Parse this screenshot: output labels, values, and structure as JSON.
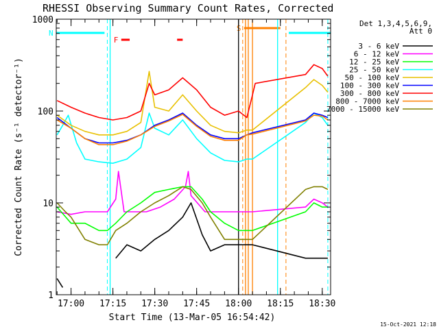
{
  "chart_data": {
    "type": "line",
    "title": "RHESSI Observing Summary Count Rates, Corrected",
    "xlabel": "Start Time (13-Mar-05 16:54:42)",
    "ylabel": "Corrected Count Rate (s⁻¹ detector⁻¹)",
    "y_scale": "log",
    "ylim": [
      1,
      1000
    ],
    "xlim": [
      "16:54:42",
      "18:33:00"
    ],
    "x_ticks": [
      "17:00",
      "17:15",
      "17:30",
      "17:45",
      "18:00",
      "18:15",
      "18:30"
    ],
    "y_ticks": [
      "1",
      "10",
      "100",
      "1000"
    ],
    "legend_header": [
      "Det 1,3,4,5,6,9,",
      "Att 0"
    ],
    "legend_position": "right",
    "series": [
      {
        "name": "3 - 6 keV",
        "color": "#000000",
        "x": [
          "16:55",
          "16:57",
          "17:00",
          "17:05",
          "17:10",
          "17:13",
          "17:16",
          "17:20",
          "17:25",
          "17:30",
          "17:35",
          "17:40",
          "17:43",
          "17:47",
          "17:50",
          "17:55",
          "18:00",
          "18:02",
          "18:05",
          "18:24",
          "18:27",
          "18:30",
          "18:32"
        ],
        "y": [
          1.5,
          1.2,
          null,
          null,
          null,
          null,
          2.5,
          3.5,
          3.0,
          4.0,
          5.0,
          7.0,
          10,
          4.5,
          3.0,
          3.5,
          3.5,
          3.5,
          3.5,
          2.5,
          2.5,
          2.5,
          2.5
        ]
      },
      {
        "name": "6 - 12 keV",
        "color": "#ff00ff",
        "x": [
          "16:55",
          "17:00",
          "17:05",
          "17:10",
          "17:13",
          "17:16",
          "17:17",
          "17:19",
          "17:22",
          "17:27",
          "17:32",
          "17:37",
          "17:41",
          "17:42",
          "17:43",
          "17:48",
          "17:55",
          "18:00",
          "18:05",
          "18:24",
          "18:27",
          "18:30",
          "18:32"
        ],
        "y": [
          8,
          7.5,
          8,
          8,
          8,
          11,
          22,
          8,
          8,
          8,
          9,
          11,
          15,
          22,
          12,
          8,
          8,
          8,
          8,
          9,
          11,
          10,
          9
        ]
      },
      {
        "name": "12 - 25 keV",
        "color": "#00ff00",
        "x": [
          "16:55",
          "17:00",
          "17:05",
          "17:10",
          "17:13",
          "17:16",
          "17:20",
          "17:25",
          "17:30",
          "17:35",
          "17:40",
          "17:43",
          "17:47",
          "17:50",
          "17:55",
          "18:00",
          "18:05",
          "18:24",
          "18:27",
          "18:30",
          "18:32"
        ],
        "y": [
          9,
          6,
          6,
          5,
          5,
          6,
          8,
          10,
          13,
          14,
          15,
          15,
          11,
          8,
          6,
          5,
          5,
          8,
          10,
          9,
          9
        ]
      },
      {
        "name": "25 - 50 keV",
        "color": "#00ffff",
        "x": [
          "16:55",
          "16:57",
          "16:59",
          "17:02",
          "17:05",
          "17:10",
          "17:15",
          "17:20",
          "17:25",
          "17:28",
          "17:30",
          "17:35",
          "17:40",
          "17:45",
          "17:50",
          "17:55",
          "18:00",
          "18:03",
          "18:05",
          "18:24",
          "18:27",
          "18:30",
          "18:32"
        ],
        "y": [
          55,
          70,
          90,
          45,
          30,
          28,
          27,
          30,
          40,
          95,
          65,
          55,
          80,
          50,
          35,
          29,
          28,
          30,
          30,
          75,
          95,
          85,
          70
        ]
      },
      {
        "name": "50 - 100 keV",
        "color": "#e8c000",
        "x": [
          "16:55",
          "17:00",
          "17:05",
          "17:10",
          "17:15",
          "17:20",
          "17:25",
          "17:28",
          "17:30",
          "17:35",
          "17:40",
          "17:45",
          "17:50",
          "17:55",
          "18:00",
          "18:03",
          "18:05",
          "18:24",
          "18:27",
          "18:30",
          "18:32"
        ],
        "y": [
          90,
          70,
          60,
          55,
          55,
          60,
          75,
          270,
          110,
          100,
          150,
          100,
          70,
          60,
          58,
          62,
          62,
          180,
          220,
          190,
          160
        ]
      },
      {
        "name": "100 - 300 keV",
        "color": "#0000ff",
        "x": [
          "16:55",
          "17:00",
          "17:05",
          "17:10",
          "17:15",
          "17:20",
          "17:25",
          "17:30",
          "17:35",
          "17:40",
          "17:45",
          "17:50",
          "17:55",
          "18:00",
          "18:03",
          "18:05",
          "18:24",
          "18:27",
          "18:30",
          "18:32"
        ],
        "y": [
          85,
          65,
          50,
          45,
          45,
          48,
          55,
          70,
          80,
          95,
          70,
          55,
          50,
          50,
          55,
          58,
          80,
          95,
          90,
          85
        ]
      },
      {
        "name": "300 - 800 keV",
        "color": "#ff0000",
        "x": [
          "16:55",
          "17:00",
          "17:05",
          "17:10",
          "17:15",
          "17:20",
          "17:25",
          "17:28",
          "17:30",
          "17:35",
          "17:40",
          "17:45",
          "17:50",
          "17:55",
          "18:00",
          "18:03",
          "18:05",
          "18:06",
          "18:24",
          "18:27",
          "18:30",
          "18:32"
        ],
        "y": [
          130,
          110,
          95,
          85,
          80,
          85,
          100,
          200,
          150,
          170,
          230,
          170,
          110,
          90,
          100,
          85,
          150,
          200,
          250,
          320,
          290,
          240
        ]
      },
      {
        "name": "800 - 7000 keV",
        "color": "#ff8000",
        "x": [
          "16:55",
          "17:00",
          "17:05",
          "17:10",
          "17:15",
          "17:20",
          "17:25",
          "17:30",
          "17:35",
          "17:40",
          "17:45",
          "17:50",
          "17:55",
          "18:00",
          "18:03",
          "18:05",
          "18:24",
          "18:27",
          "18:30",
          "18:32"
        ],
        "y": [
          80,
          65,
          50,
          43,
          43,
          47,
          55,
          68,
          78,
          92,
          68,
          53,
          48,
          48,
          55,
          56,
          78,
          90,
          88,
          80
        ]
      },
      {
        "name": "7000 - 15000 keV",
        "color": "#808000",
        "x": [
          "16:55",
          "16:58",
          "17:00",
          "17:05",
          "17:10",
          "17:13",
          "17:16",
          "17:20",
          "17:25",
          "17:30",
          "17:35",
          "17:40",
          "17:43",
          "17:47",
          "17:50",
          "17:55",
          "18:00",
          "18:05",
          "18:24",
          "18:27",
          "18:30",
          "18:32"
        ],
        "y": [
          10,
          8,
          7,
          4,
          3.5,
          3.5,
          5,
          6,
          8,
          10,
          12,
          15,
          14,
          10,
          7,
          4,
          4,
          4,
          14,
          15,
          15,
          14
        ]
      }
    ],
    "flag_markers": [
      {
        "label": "N",
        "color": "#00ffff",
        "start": "16:54:42",
        "end": "17:12:00"
      },
      {
        "label": "",
        "color": "#00ffff",
        "start": "18:18:00",
        "end": "18:33:00"
      },
      {
        "label": "F",
        "color": "#ff0000",
        "start": "17:18:00",
        "end": "17:21:00"
      },
      {
        "label": "",
        "color": "#ff0000",
        "start": "17:38:00",
        "end": "17:40:00"
      },
      {
        "label": "S",
        "color": "#ff8000",
        "start": "18:02:00",
        "end": "18:15:00"
      }
    ],
    "vertical_lines": [
      {
        "time": "17:13:00",
        "color": "#00ffff",
        "style": "dashed"
      },
      {
        "time": "17:14:00",
        "color": "#00ffff",
        "style": "solid"
      },
      {
        "time": "18:00:00",
        "color": "#000000",
        "style": "solid"
      },
      {
        "time": "18:01:30",
        "color": "#ff8000",
        "style": "dashed"
      },
      {
        "time": "18:02:30",
        "color": "#ff8000",
        "style": "solid"
      },
      {
        "time": "18:03:30",
        "color": "#ff8000",
        "style": "solid"
      },
      {
        "time": "18:05:00",
        "color": "#ff8000",
        "style": "solid"
      },
      {
        "time": "18:14:00",
        "color": "#00ffff",
        "style": "solid"
      },
      {
        "time": "18:17:00",
        "color": "#ff8000",
        "style": "dashed"
      },
      {
        "time": "18:32:00",
        "color": "#00ffff",
        "style": "dashed"
      }
    ]
  },
  "footer": {
    "timestamp": "15-Oct-2021 12:18"
  }
}
